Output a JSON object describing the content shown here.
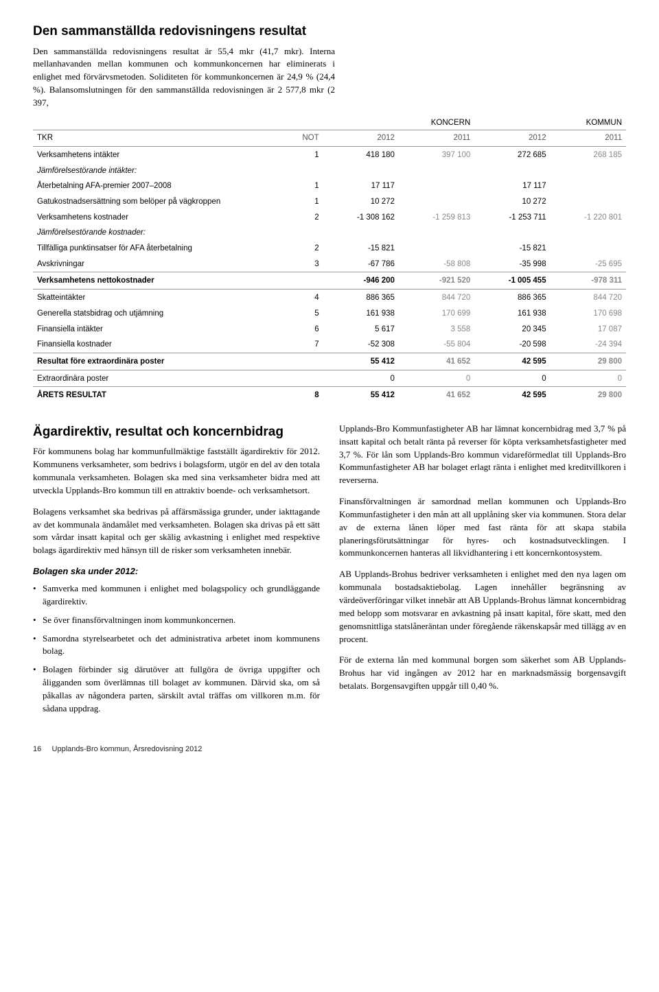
{
  "section1": {
    "heading": "Den sammanställda redovisningens resultat",
    "paragraph": "Den sammanställda redovisningens resultat är 55,4 mkr (41,7 mkr). Interna mellanhavanden mellan kommunen och kommunkoncernen har eliminerats i enlighet med förvärvsmetoden. Soliditeten för kommunkoncernen är 24,9 % (24,4 %). Balansomslutningen för den sammanställda redovisningen är 2 577,8 mkr (2 397,"
  },
  "table": {
    "col_group1": "KONCERN",
    "col_group2": "KOMMUN",
    "head_c0": "TKR",
    "head_c1": "NOT",
    "head_c2": "2012",
    "head_c3": "2011",
    "head_c4": "2012",
    "head_c5": "2011",
    "r1": {
      "label": "Verksamhetens intäkter",
      "n": "1",
      "a": "418 180",
      "b": "397 100",
      "c": "272 685",
      "d": "268 185"
    },
    "r2": {
      "label": "Jämförelsestörande intäkter:"
    },
    "r3": {
      "label": "Återbetalning AFA-premier 2007–2008",
      "n": "1",
      "a": "17 117",
      "b": "",
      "c": "17 117",
      "d": ""
    },
    "r4": {
      "label": "Gatukostnadsersättning som belöper på vägkroppen",
      "n": "1",
      "a": "10 272",
      "b": "",
      "c": "10 272",
      "d": ""
    },
    "r5": {
      "label": "Verksamhetens kostnader",
      "n": "2",
      "a": "-1 308 162",
      "b": "-1 259 813",
      "c": "-1 253 711",
      "d": "-1 220 801"
    },
    "r6": {
      "label": "Jämförelsestörande kostnader:"
    },
    "r7": {
      "label": "Tillfälliga punktinsatser för AFA återbetalning",
      "n": "2",
      "a": "-15 821",
      "b": "",
      "c": "-15 821",
      "d": ""
    },
    "r8": {
      "label": "Avskrivningar",
      "n": "3",
      "a": "-67 786",
      "b": "-58 808",
      "c": "-35 998",
      "d": "-25 695"
    },
    "r9": {
      "label": "Verksamhetens nettokostnader",
      "n": "",
      "a": "-946 200",
      "b": "-921 520",
      "c": "-1 005 455",
      "d": "-978 311"
    },
    "r10": {
      "label": "Skatteintäkter",
      "n": "4",
      "a": "886 365",
      "b": "844 720",
      "c": "886 365",
      "d": "844 720"
    },
    "r11": {
      "label": "Generella statsbidrag och utjämning",
      "n": "5",
      "a": "161 938",
      "b": "170 699",
      "c": "161 938",
      "d": "170 698"
    },
    "r12": {
      "label": "Finansiella intäkter",
      "n": "6",
      "a": "5 617",
      "b": "3 558",
      "c": "20 345",
      "d": "17 087"
    },
    "r13": {
      "label": "Finansiella kostnader",
      "n": "7",
      "a": "-52 308",
      "b": "-55 804",
      "c": "-20 598",
      "d": "-24 394"
    },
    "r14": {
      "label": "Resultat före extraordinära poster",
      "n": "",
      "a": "55 412",
      "b": "41 652",
      "c": "42 595",
      "d": "29 800"
    },
    "r15": {
      "label": "Extraordinära poster",
      "n": "",
      "a": "0",
      "b": "0",
      "c": "0",
      "d": "0"
    },
    "r16": {
      "label": "ÅRETS RESULTAT",
      "n": "8",
      "a": "55 412",
      "b": "41 652",
      "c": "42 595",
      "d": "29 800"
    }
  },
  "section2": {
    "heading": "Ägardirektiv, resultat och koncernbidrag",
    "left": {
      "p1": "För kommunens bolag har kommunfullmäktige fastställt ägardirektiv för 2012. Kommunens verksamheter, som bedrivs i bolagsform, utgör en del av den totala kommunala verksamheten. Bolagen ska med sina verksamheter bidra med att utveckla Upplands-Bro kommun till en attraktiv boende- och verksamhetsort.",
      "p2": "Bolagens verksamhet ska bedrivas på affärsmässiga grunder, under iakttagande av det kommunala ändamålet med verksamheten. Bolagen ska drivas på ett sätt som vårdar insatt kapital och ger skälig avkastning i enlighet med respektive bolags ägardirektiv med hänsyn till de risker som verksamheten innebär.",
      "sub": "Bolagen ska under 2012:",
      "b1": "Samverka med kommunen i enlighet med bolagspolicy och grundläggande ägardirektiv.",
      "b2": "Se över finansförvaltningen inom kommunkoncernen.",
      "b3": "Samordna styrelsearbetet och det administrativa arbetet inom kommunens bolag.",
      "b4": "Bolagen förbinder sig därutöver att fullgöra de övriga uppgifter och åligganden som överlämnas till bolaget av kommunen. Därvid ska, om så påkallas av någondera parten, särskilt avtal träffas om villkoren m.m. för sådana uppdrag."
    },
    "right": {
      "p1": "Upplands-Bro Kommunfastigheter AB har lämnat koncernbidrag med 3,7 % på insatt kapital och betalt ränta på reverser för köpta verksamhetsfastigheter med 3,7 %. För lån som Upplands-Bro kommun vidareförmedlat till Upplands-Bro Kommunfastigheter AB har bolaget erlagt ränta i enlighet med kreditvillkoren i reverserna.",
      "p2": "Finansförvaltningen är samordnad mellan kommunen och Upplands-Bro Kommunfastigheter i den mån att all upplåning sker via kommunen. Stora delar av de externa lånen löper med fast ränta för att skapa stabila planeringsförutsättningar för hyres- och kostnadsutvecklingen. I kommunkoncernen hanteras all likvidhantering i ett koncernkontosystem.",
      "p3": "AB Upplands-Brohus bedriver verksamheten i enlighet med den nya lagen om kommunala bostadsaktiebolag. Lagen innehåller begränsning av värdeöverföringar vilket innebär att AB Upplands-Brohus lämnat koncernbidrag med belopp som motsvarar en avkastning på insatt kapital, före skatt, med den genomsnittliga statslåneräntan under föregående räkenskapsår med tillägg av en procent.",
      "p4": "För de externa lån med kommunal borgen som säkerhet som AB Upplands-Brohus har vid ingången av 2012 har en marknadsmässig borgensavgift betalats. Borgensavgiften uppgår till 0,40 %."
    }
  },
  "footer": {
    "page": "16",
    "text": "Upplands-Bro kommun, Årsredovisning 2012"
  }
}
